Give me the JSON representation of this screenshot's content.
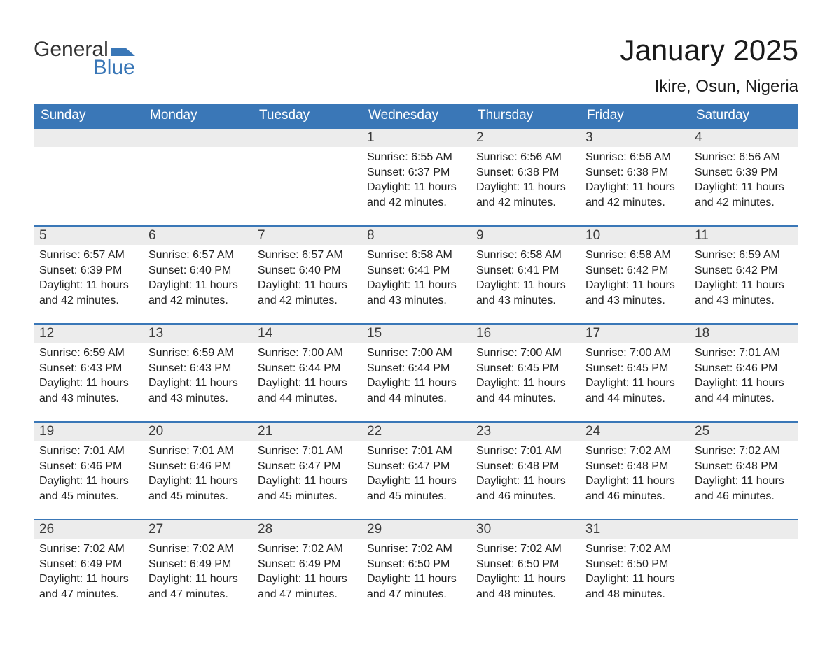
{
  "logo": {
    "text1": "General",
    "text2": "Blue",
    "accent": "#3a77b7"
  },
  "title": "January 2025",
  "location": "Ikire, Osun, Nigeria",
  "colors": {
    "header_bg": "#3a77b7",
    "header_text": "#ffffff",
    "daynum_bg": "#ececec",
    "daynum_border": "#3a77b7",
    "text": "#222222",
    "page_bg": "#ffffff"
  },
  "daysOfWeek": [
    "Sunday",
    "Monday",
    "Tuesday",
    "Wednesday",
    "Thursday",
    "Friday",
    "Saturday"
  ],
  "weeks": [
    [
      null,
      null,
      null,
      {
        "n": 1,
        "sr": "6:55 AM",
        "ss": "6:37 PM",
        "dh": 11,
        "dm": 42
      },
      {
        "n": 2,
        "sr": "6:56 AM",
        "ss": "6:38 PM",
        "dh": 11,
        "dm": 42
      },
      {
        "n": 3,
        "sr": "6:56 AM",
        "ss": "6:38 PM",
        "dh": 11,
        "dm": 42
      },
      {
        "n": 4,
        "sr": "6:56 AM",
        "ss": "6:39 PM",
        "dh": 11,
        "dm": 42
      }
    ],
    [
      {
        "n": 5,
        "sr": "6:57 AM",
        "ss": "6:39 PM",
        "dh": 11,
        "dm": 42
      },
      {
        "n": 6,
        "sr": "6:57 AM",
        "ss": "6:40 PM",
        "dh": 11,
        "dm": 42
      },
      {
        "n": 7,
        "sr": "6:57 AM",
        "ss": "6:40 PM",
        "dh": 11,
        "dm": 42
      },
      {
        "n": 8,
        "sr": "6:58 AM",
        "ss": "6:41 PM",
        "dh": 11,
        "dm": 43
      },
      {
        "n": 9,
        "sr": "6:58 AM",
        "ss": "6:41 PM",
        "dh": 11,
        "dm": 43
      },
      {
        "n": 10,
        "sr": "6:58 AM",
        "ss": "6:42 PM",
        "dh": 11,
        "dm": 43
      },
      {
        "n": 11,
        "sr": "6:59 AM",
        "ss": "6:42 PM",
        "dh": 11,
        "dm": 43
      }
    ],
    [
      {
        "n": 12,
        "sr": "6:59 AM",
        "ss": "6:43 PM",
        "dh": 11,
        "dm": 43
      },
      {
        "n": 13,
        "sr": "6:59 AM",
        "ss": "6:43 PM",
        "dh": 11,
        "dm": 43
      },
      {
        "n": 14,
        "sr": "7:00 AM",
        "ss": "6:44 PM",
        "dh": 11,
        "dm": 44
      },
      {
        "n": 15,
        "sr": "7:00 AM",
        "ss": "6:44 PM",
        "dh": 11,
        "dm": 44
      },
      {
        "n": 16,
        "sr": "7:00 AM",
        "ss": "6:45 PM",
        "dh": 11,
        "dm": 44
      },
      {
        "n": 17,
        "sr": "7:00 AM",
        "ss": "6:45 PM",
        "dh": 11,
        "dm": 44
      },
      {
        "n": 18,
        "sr": "7:01 AM",
        "ss": "6:46 PM",
        "dh": 11,
        "dm": 44
      }
    ],
    [
      {
        "n": 19,
        "sr": "7:01 AM",
        "ss": "6:46 PM",
        "dh": 11,
        "dm": 45
      },
      {
        "n": 20,
        "sr": "7:01 AM",
        "ss": "6:46 PM",
        "dh": 11,
        "dm": 45
      },
      {
        "n": 21,
        "sr": "7:01 AM",
        "ss": "6:47 PM",
        "dh": 11,
        "dm": 45
      },
      {
        "n": 22,
        "sr": "7:01 AM",
        "ss": "6:47 PM",
        "dh": 11,
        "dm": 45
      },
      {
        "n": 23,
        "sr": "7:01 AM",
        "ss": "6:48 PM",
        "dh": 11,
        "dm": 46
      },
      {
        "n": 24,
        "sr": "7:02 AM",
        "ss": "6:48 PM",
        "dh": 11,
        "dm": 46
      },
      {
        "n": 25,
        "sr": "7:02 AM",
        "ss": "6:48 PM",
        "dh": 11,
        "dm": 46
      }
    ],
    [
      {
        "n": 26,
        "sr": "7:02 AM",
        "ss": "6:49 PM",
        "dh": 11,
        "dm": 47
      },
      {
        "n": 27,
        "sr": "7:02 AM",
        "ss": "6:49 PM",
        "dh": 11,
        "dm": 47
      },
      {
        "n": 28,
        "sr": "7:02 AM",
        "ss": "6:49 PM",
        "dh": 11,
        "dm": 47
      },
      {
        "n": 29,
        "sr": "7:02 AM",
        "ss": "6:50 PM",
        "dh": 11,
        "dm": 47
      },
      {
        "n": 30,
        "sr": "7:02 AM",
        "ss": "6:50 PM",
        "dh": 11,
        "dm": 48
      },
      {
        "n": 31,
        "sr": "7:02 AM",
        "ss": "6:50 PM",
        "dh": 11,
        "dm": 48
      },
      null
    ]
  ],
  "labels": {
    "sunrise": "Sunrise:",
    "sunset": "Sunset:",
    "daylight_prefix": "Daylight:",
    "hours_word": "hours",
    "and_word": "and",
    "minutes_word": "minutes."
  }
}
